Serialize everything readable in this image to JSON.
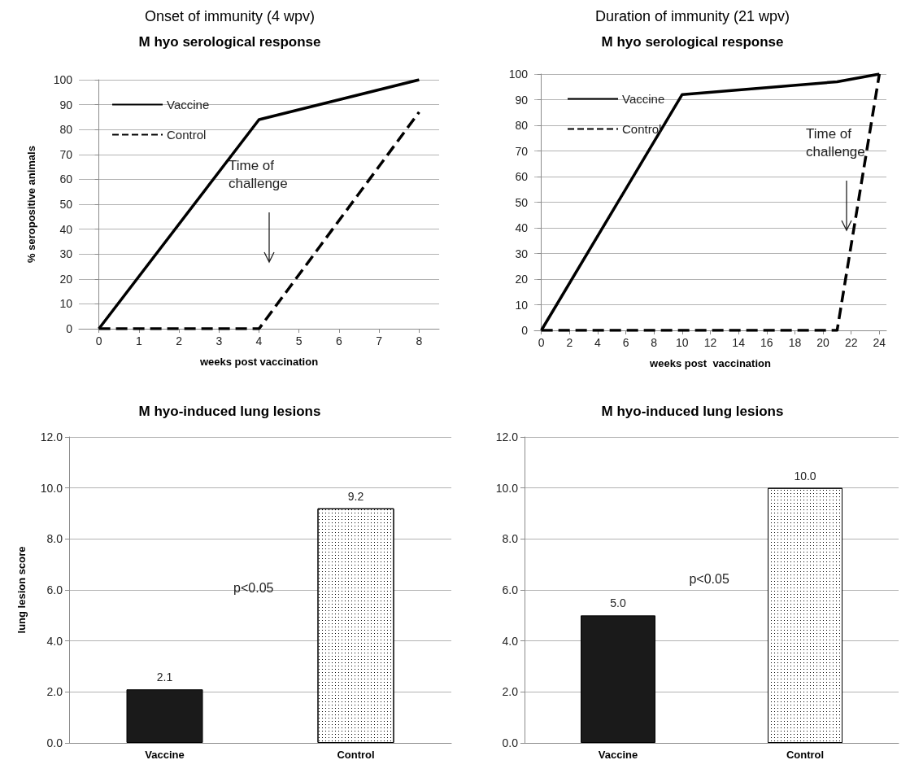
{
  "chart_data": [
    {
      "type": "line",
      "title": "Onset of immunity (4 wpv)",
      "subtitle": "M hyo serological response",
      "xlabel": "weeks post vaccination",
      "ylabel": "% seropositive animals",
      "x": [
        0,
        4,
        8
      ],
      "series": [
        {
          "name": "Vaccine",
          "color": "#000000",
          "line_style": "solid",
          "values": [
            0,
            84,
            100
          ]
        },
        {
          "name": "Control",
          "color": "#000000",
          "line_style": "dashed",
          "values": [
            0,
            0,
            87
          ]
        }
      ],
      "xlim": [
        -0.5,
        8.5
      ],
      "xticks": [
        0,
        1,
        2,
        3,
        4,
        5,
        6,
        7,
        8
      ],
      "ylim": [
        0,
        100
      ],
      "yticks": [
        0,
        10,
        20,
        30,
        40,
        50,
        60,
        70,
        80,
        90,
        100
      ],
      "annotations": [
        "Time of challenge"
      ],
      "grid": "y",
      "legend": "top left",
      "marker": "none"
    },
    {
      "type": "line",
      "title": "Duration of immunity (21 wpv)",
      "subtitle": "M hyo serological response",
      "xlabel": "weeks post  vaccination",
      "series": [
        {
          "name": "Vaccine",
          "color": "#000000",
          "line_style": "solid",
          "x": [
            0,
            10,
            21,
            24
          ],
          "values": [
            0,
            92,
            97,
            100
          ]
        },
        {
          "name": "Control",
          "color": "#000000",
          "line_style": "dashed",
          "x": [
            0,
            21,
            24
          ],
          "values": [
            0,
            0,
            100
          ]
        }
      ],
      "xlim": [
        -0.5,
        24.5
      ],
      "xticks": [
        0,
        2,
        4,
        6,
        8,
        10,
        12,
        14,
        16,
        18,
        20,
        22,
        24
      ],
      "ylim": [
        0,
        100
      ],
      "yticks": [
        0,
        10,
        20,
        30,
        40,
        50,
        60,
        70,
        80,
        90,
        100
      ],
      "annotations": [
        "Time of challenge"
      ],
      "grid": "y",
      "legend": "top left",
      "marker": "none"
    },
    {
      "type": "bar",
      "title": "M hyo-induced lung lesions",
      "ylabel": "lung lesion score",
      "categories": [
        "Vaccine",
        "Control"
      ],
      "values": [
        2.1,
        9.2
      ],
      "colors": [
        "#1a1a1a",
        "#ffffff"
      ],
      "value_labels": [
        "2.1",
        "9.2"
      ],
      "ylim": [
        0,
        12
      ],
      "yticks": [
        {
          "value": 0,
          "label": "0.0"
        },
        {
          "value": 2,
          "label": "2.0"
        },
        {
          "value": 4,
          "label": "4.0"
        },
        {
          "value": 6,
          "label": "6.0"
        },
        {
          "value": 8,
          "label": "8.0"
        },
        {
          "value": 10,
          "label": "10.0"
        },
        {
          "value": 12,
          "label": "12.0"
        }
      ],
      "annotations": [
        "p<0.05"
      ],
      "grid": "y",
      "legend": false
    },
    {
      "type": "bar",
      "title": "M hyo-induced lung lesions",
      "categories": [
        "Vaccine",
        "Control"
      ],
      "values": [
        5.0,
        10.0
      ],
      "colors": [
        "#1a1a1a",
        "#ffffff"
      ],
      "value_labels": [
        "5.0",
        "10.0"
      ],
      "ylim": [
        0,
        12
      ],
      "yticks": [
        {
          "value": 0,
          "label": "0.0"
        },
        {
          "value": 2,
          "label": "2.0"
        },
        {
          "value": 4,
          "label": "4.0"
        },
        {
          "value": 6,
          "label": "6.0"
        },
        {
          "value": 8,
          "label": "8.0"
        },
        {
          "value": 10,
          "label": "10.0"
        },
        {
          "value": 12,
          "label": "12.0"
        }
      ],
      "annotations": [
        "p<0.05"
      ],
      "grid": "y",
      "legend": false
    }
  ]
}
